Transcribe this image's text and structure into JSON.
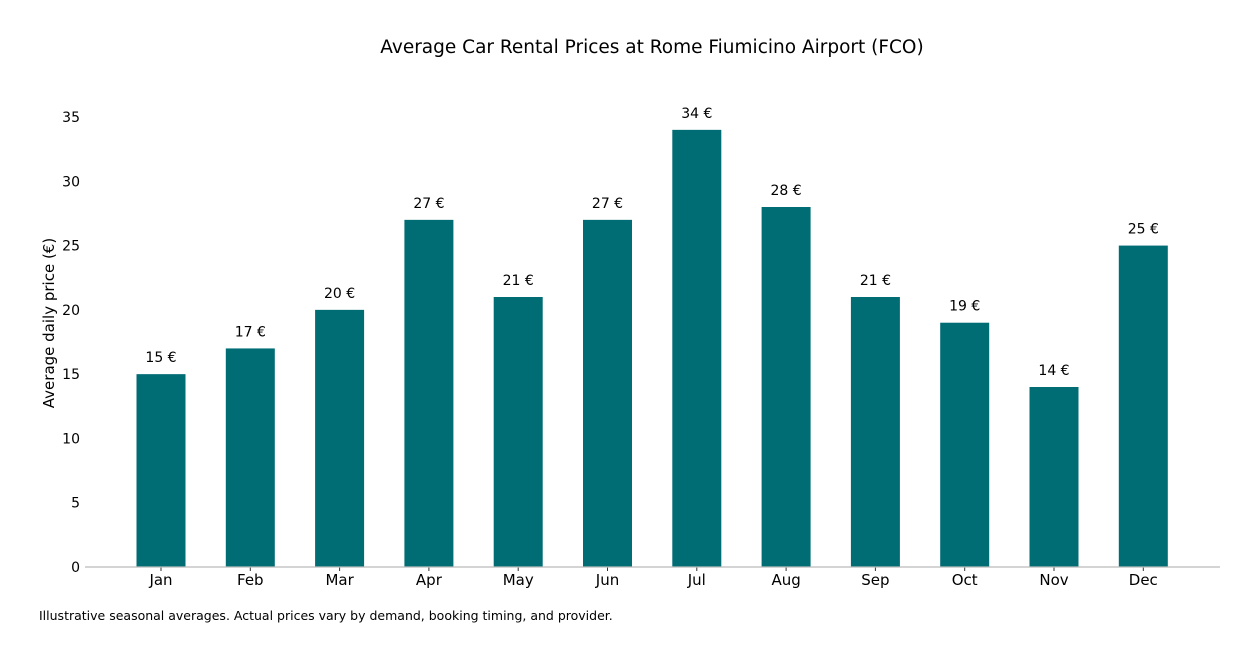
{
  "chart_data": {
    "type": "bar",
    "title": "Average Car Rental Prices at Rome Fiumicino Airport (FCO)",
    "xlabel": "",
    "ylabel": "Average daily price (€)",
    "categories": [
      "Jan",
      "Feb",
      "Mar",
      "Apr",
      "May",
      "Jun",
      "Jul",
      "Aug",
      "Sep",
      "Oct",
      "Nov",
      "Dec"
    ],
    "values": [
      15,
      17,
      20,
      27,
      21,
      27,
      34,
      28,
      21,
      19,
      14,
      25
    ],
    "data_labels": [
      "15 €",
      "17 €",
      "20 €",
      "27 €",
      "21 €",
      "27 €",
      "34 €",
      "28 €",
      "21 €",
      "19 €",
      "14 €",
      "25 €"
    ],
    "yticks": [
      0,
      5,
      10,
      15,
      20,
      25,
      30,
      35
    ],
    "ylim": [
      0,
      35
    ],
    "grid": false,
    "bar_color": "#006d75"
  },
  "footnote": "Illustrative seasonal averages. Actual prices vary by demand, booking timing, and provider."
}
